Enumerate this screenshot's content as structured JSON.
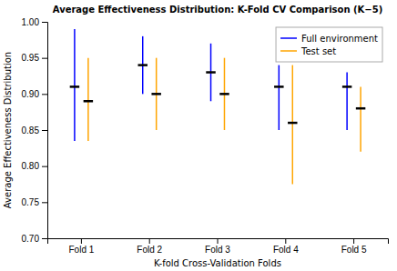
{
  "chart_data": {
    "type": "range",
    "title": "Average Effectiveness Distribution: K-Fold CV Comparison (K−5)",
    "xlabel": "K-fold Cross-Validation Folds",
    "ylabel": "Average Effectiveness Distribution",
    "categories": [
      "Fold 1",
      "Fold 2",
      "Fold 3",
      "Fold 4",
      "Fold 5"
    ],
    "series": [
      {
        "name": "Full environment",
        "color": "#0000FF",
        "values": [
          0.91,
          0.94,
          0.93,
          0.91,
          0.91
        ],
        "lows": [
          0.835,
          0.9,
          0.89,
          0.85,
          0.85
        ],
        "highs": [
          0.99,
          0.98,
          0.97,
          0.94,
          0.93
        ]
      },
      {
        "name": "Test set",
        "color": "#FFA500",
        "values": [
          0.89,
          0.9,
          0.9,
          0.86,
          0.88
        ],
        "lows": [
          0.835,
          0.85,
          0.85,
          0.775,
          0.82
        ],
        "highs": [
          0.95,
          0.95,
          0.95,
          0.94,
          0.91
        ]
      }
    ],
    "ylim": [
      0.7,
      1.0
    ],
    "yticks": [
      {
        "value": 0.7,
        "label": "0.70"
      },
      0.75,
      {
        "value": 0.8,
        "label": "0.80"
      },
      0.85,
      {
        "value": 0.9,
        "label": "0.90"
      },
      0.95,
      {
        "value": 1.0,
        "label": "1.00"
      }
    ],
    "grid": false,
    "legend": "upper right"
  }
}
